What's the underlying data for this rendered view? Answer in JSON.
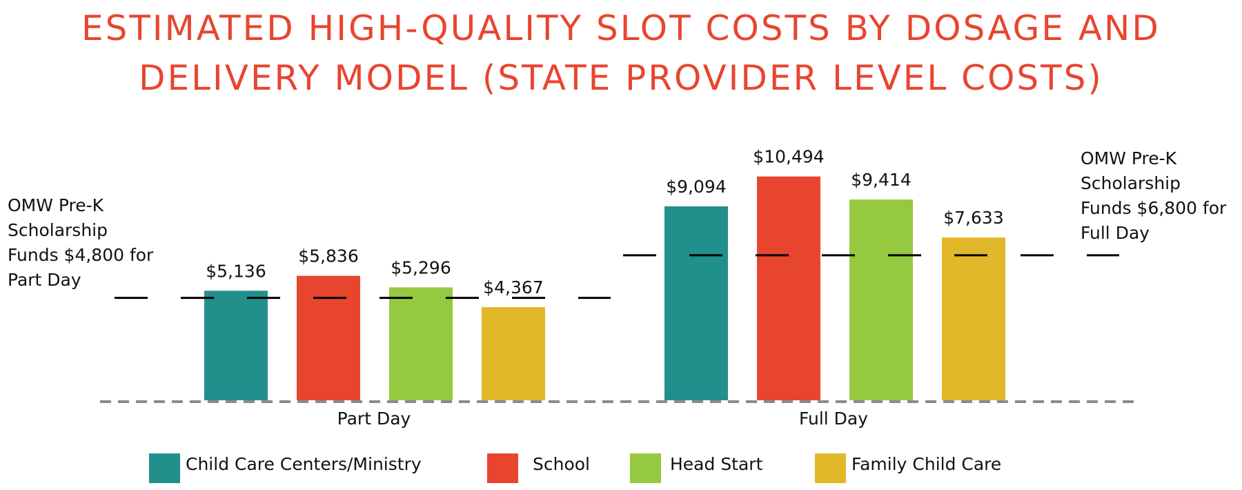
{
  "title": {
    "line1": "ESTIMATED HIGH-QUALITY SLOT COSTS BY DOSAGE AND",
    "line2": "DELIVERY MODEL (STATE PROVIDER LEVEL COSTS)"
  },
  "chart_data": {
    "type": "bar",
    "title": "ESTIMATED HIGH-QUALITY SLOT COSTS BY DOSAGE AND DELIVERY MODEL (STATE PROVIDER LEVEL COSTS)",
    "categories": [
      "Part Day",
      "Full Day"
    ],
    "series": [
      {
        "name": "Child Care Centers/Ministry",
        "color": "#21908d",
        "values": [
          5136,
          9094
        ],
        "labels": [
          "$5,136",
          "$9,094"
        ]
      },
      {
        "name": "School",
        "color": "#e8452f",
        "values": [
          5836,
          10494
        ],
        "labels": [
          "$5,836",
          "$10,494"
        ]
      },
      {
        "name": "Head Start",
        "color": "#95c940",
        "values": [
          5296,
          9414
        ],
        "labels": [
          "$5,296",
          "$9,414"
        ]
      },
      {
        "name": "Family Child Care",
        "color": "#e1b829",
        "values": [
          4367,
          7633
        ],
        "labels": [
          "$4,367",
          "$7,633"
        ]
      }
    ],
    "reference_lines": [
      {
        "group": "Part Day",
        "value": 4800,
        "note_lines": [
          "OMW Pre-K",
          "Scholarship",
          "Funds $4,800 for",
          "Part Day"
        ]
      },
      {
        "group": "Full Day",
        "value": 6800,
        "note_lines": [
          "OMW Pre-K",
          "Scholarship",
          "Funds $6,800 for",
          "Full Day"
        ]
      }
    ],
    "xlabel": "",
    "ylabel": "",
    "ylim": [
      0,
      11000
    ],
    "grid": false,
    "legend": "bottom"
  }
}
